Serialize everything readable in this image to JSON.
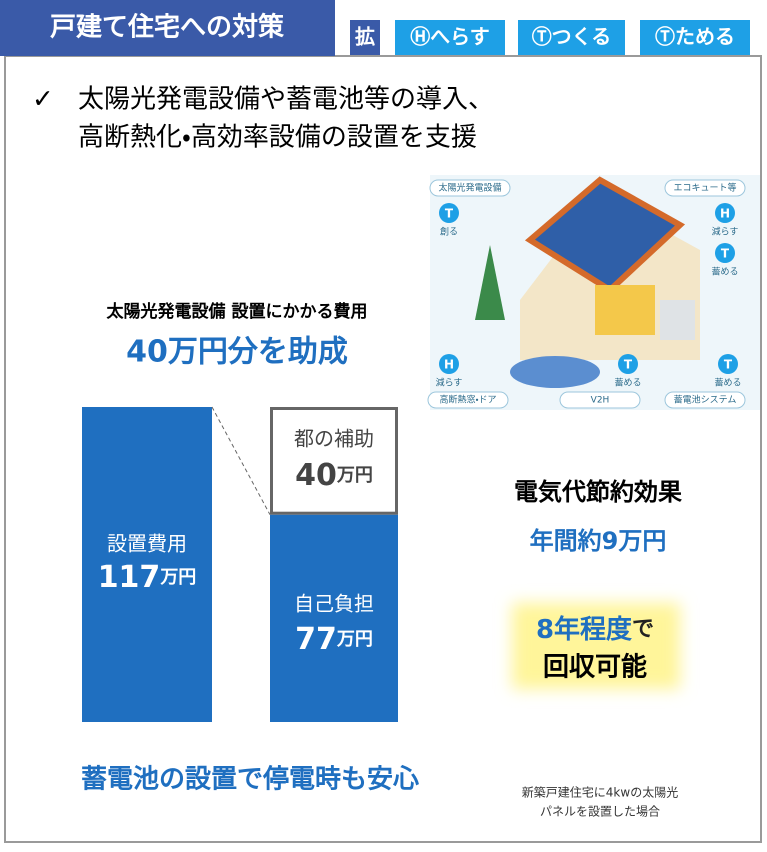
{
  "header": {
    "title": "戸建て住宅への対策",
    "tags": [
      "拡",
      "Ⓗへらす",
      "Ⓣつくる",
      "Ⓣためる"
    ]
  },
  "bullet": {
    "mark": "✓",
    "lines": [
      "太陽光発電設備や蓄電池等の導入、",
      "高断熱化・高効率設備の設置を支援"
    ]
  },
  "illustration": {
    "labels": [
      "太陽光発電設備",
      "エコキュート等",
      "創る",
      "減らす",
      "蓄める",
      "減らす",
      "蓄める",
      "蓄める",
      "高断熱窓・ドア",
      "V2H",
      "蓄電池システム"
    ],
    "icons": [
      "T",
      "H",
      "T",
      "H",
      "T",
      "T"
    ]
  },
  "cost": {
    "heading": "太陽光発電設備 設置にかかる費用",
    "subsidy_headline": "40万円分を助成",
    "total": {
      "label": "設置費用",
      "value": 117,
      "unit": "万円"
    },
    "self_pay": {
      "label": "自己負担",
      "value": 77,
      "unit": "万円"
    },
    "subsidy": {
      "label": "都の補助",
      "value": 40,
      "unit": "万円"
    }
  },
  "savings": {
    "title": "電気代節約効果",
    "annual": "年間約9万円",
    "payback_em": "8年程度",
    "payback_rest": "で",
    "payback_line2": "回収可能"
  },
  "footer": {
    "battery": "蓄電池の設置で停電時も安心",
    "note": [
      "新築戸建住宅に4kwの太陽光",
      "パネルを設置した場合"
    ]
  }
}
